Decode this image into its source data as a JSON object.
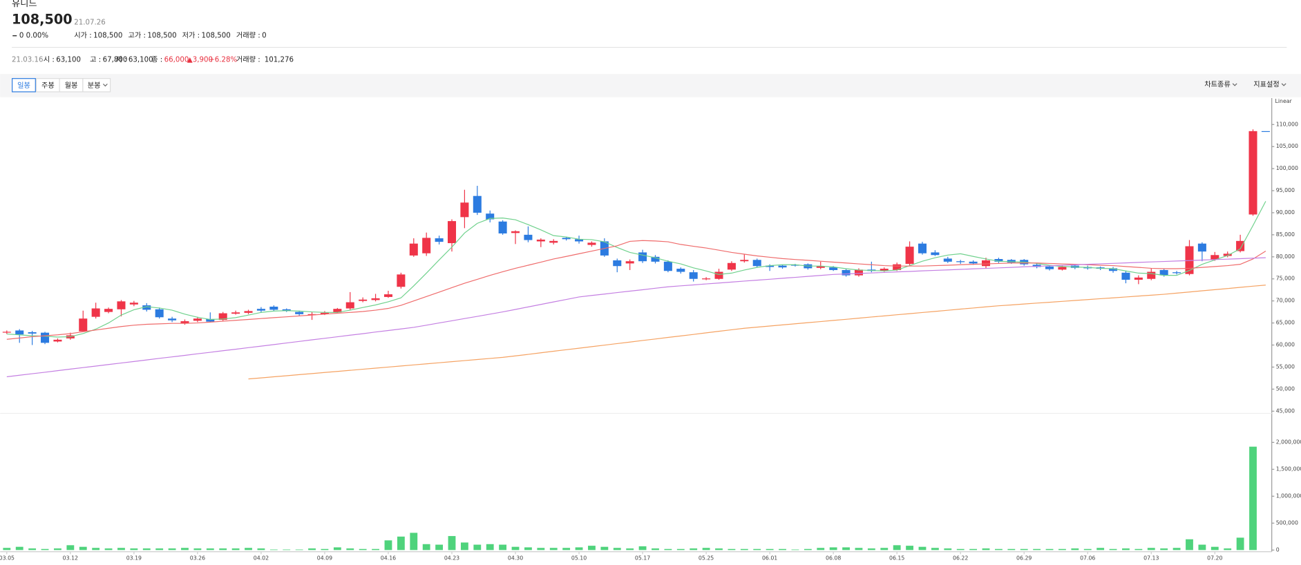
{
  "header": {
    "title": "유니드",
    "price": "108,500",
    "date": "21.07.26",
    "change": "0 0.00%",
    "stats": [
      {
        "label": "시가 :",
        "value": "108,500"
      },
      {
        "label": "고가 :",
        "value": "108,500"
      },
      {
        "label": "저가 :",
        "value": "108,500"
      },
      {
        "label": "거래량 :",
        "value": "0"
      }
    ]
  },
  "hover": {
    "date": "21.03.16",
    "stats": [
      {
        "label": "시 :",
        "value": "63,100"
      },
      {
        "label": "고 :",
        "value": "67,800"
      },
      {
        "label": "저 :",
        "value": "63,100"
      },
      {
        "label": "종 :",
        "value": "66,000"
      }
    ],
    "change": "▲3,900",
    "rate": "+6.28%",
    "volume": {
      "label": "거래량 :",
      "value": "101,276"
    }
  },
  "toolbar": {
    "intervals": [
      "일봉",
      "주봉",
      "월봉",
      "분봉"
    ],
    "right": [
      "차트종류",
      "지표설정"
    ]
  },
  "chart_data": {
    "type": "candlestick",
    "scale_label": "Linear",
    "categories": [
      "03.05",
      null,
      null,
      null,
      null,
      "03.12",
      null,
      null,
      null,
      null,
      "03.19",
      null,
      null,
      null,
      null,
      "03.26",
      null,
      null,
      null,
      null,
      "04.02",
      null,
      null,
      null,
      null,
      "04.09",
      null,
      null,
      null,
      null,
      "04.16",
      null,
      null,
      null,
      null,
      "04.23",
      null,
      null,
      null,
      null,
      "04.30",
      null,
      null,
      null,
      null,
      "05.10",
      null,
      null,
      null,
      null,
      "05.17",
      null,
      null,
      null,
      null,
      "05.25",
      null,
      null,
      null,
      null,
      "06.01",
      null,
      null,
      null,
      null,
      "06.08",
      null,
      null,
      null,
      null,
      "06.15",
      null,
      null,
      null,
      null,
      "06.22",
      null,
      null,
      null,
      null,
      "06.29",
      null,
      null,
      null,
      null,
      "07.06",
      null,
      null,
      null,
      null,
      "07.13",
      null,
      null,
      null,
      null,
      "07.20",
      null,
      null,
      null,
      null
    ],
    "open": [
      62900,
      63300,
      62900,
      62800,
      60800,
      61500,
      63100,
      66400,
      67500,
      68100,
      69200,
      69000,
      68100,
      66000,
      64900,
      65500,
      65900,
      65700,
      67100,
      67300,
      68200,
      68700,
      68100,
      67500,
      66800,
      67000,
      67400,
      68300,
      70000,
      70200,
      70900,
      73200,
      80300,
      80800,
      84200,
      83100,
      89000,
      93800,
      89800,
      88000,
      85400,
      85000,
      83500,
      83200,
      84300,
      84000,
      82700,
      83500,
      79200,
      78500,
      81000,
      80000,
      78900,
      77300,
      76500,
      74900,
      75000,
      77100,
      79000,
      79300,
      78000,
      78000,
      78200,
      78300,
      77500,
      77600,
      77000,
      75800,
      77100,
      76900,
      77000,
      78400,
      83000,
      81000,
      79600,
      79000,
      78900,
      77900,
      79500,
      79300,
      79300,
      78200,
      77800,
      77100,
      78000,
      77700,
      77600,
      77400,
      76400,
      74800,
      75000,
      77000,
      76500,
      76100,
      83000,
      79400,
      80200,
      81300,
      89600,
      108500
    ],
    "high": [
      63300,
      63600,
      63200,
      63000,
      61500,
      62800,
      67800,
      69600,
      68500,
      70200,
      70000,
      69500,
      68500,
      66400,
      65800,
      66400,
      67400,
      67500,
      67800,
      68000,
      68600,
      69000,
      68300,
      67800,
      67500,
      67700,
      68400,
      72000,
      70800,
      71600,
      72300,
      76400,
      84200,
      85500,
      84800,
      88500,
      95200,
      96100,
      90500,
      88300,
      86000,
      86900,
      84200,
      84000,
      84500,
      84800,
      83500,
      84200,
      79600,
      79400,
      81600,
      80400,
      79200,
      77600,
      77000,
      75400,
      77300,
      79000,
      80600,
      79600,
      78300,
      78200,
      78400,
      78500,
      78900,
      77900,
      77300,
      77400,
      78900,
      77600,
      78700,
      83500,
      83400,
      81500,
      80000,
      79300,
      79200,
      79800,
      79800,
      79500,
      79500,
      78500,
      78000,
      78000,
      78200,
      78000,
      77800,
      77700,
      76800,
      75800,
      77400,
      77300,
      76800,
      83800,
      83300,
      81100,
      81200,
      85000,
      108900,
      108500
    ],
    "low": [
      62500,
      60500,
      60000,
      60200,
      60600,
      61200,
      63100,
      66000,
      67200,
      66500,
      68800,
      67600,
      66000,
      65200,
      64600,
      65200,
      65100,
      65500,
      66900,
      67000,
      67300,
      67600,
      67500,
      66600,
      65700,
      66800,
      67200,
      68000,
      69700,
      69900,
      70700,
      72800,
      80000,
      80200,
      82800,
      81200,
      86500,
      89500,
      87800,
      85000,
      82900,
      83300,
      82200,
      82800,
      83700,
      83000,
      82300,
      80000,
      76500,
      77000,
      78600,
      78500,
      76500,
      76200,
      74400,
      74700,
      74800,
      76800,
      78700,
      77600,
      76800,
      77300,
      77800,
      77100,
      77200,
      76800,
      75500,
      75500,
      76500,
      76600,
      76800,
      78000,
      80500,
      80200,
      78600,
      78400,
      78200,
      77300,
      78600,
      78400,
      78000,
      77400,
      76900,
      76900,
      77200,
      77100,
      77000,
      76400,
      74000,
      73800,
      74700,
      75500,
      76000,
      75800,
      79000,
      79100,
      79900,
      81000,
      89300,
      108500
    ],
    "close": [
      63000,
      62400,
      62600,
      60500,
      61200,
      62200,
      66000,
      68300,
      68200,
      69900,
      69600,
      68000,
      66300,
      65600,
      65400,
      66000,
      65300,
      67200,
      67400,
      67700,
      67800,
      68000,
      67800,
      67000,
      67000,
      67300,
      68200,
      69700,
      70300,
      70600,
      71500,
      76000,
      83000,
      84300,
      83400,
      88100,
      92300,
      90000,
      88500,
      85300,
      85800,
      83800,
      83900,
      83600,
      84000,
      83500,
      83200,
      80300,
      77900,
      79000,
      79000,
      78900,
      76800,
      76600,
      75000,
      75100,
      76600,
      78600,
      79300,
      77900,
      77700,
      77600,
      78000,
      77400,
      77900,
      77000,
      75800,
      77100,
      76800,
      77300,
      78300,
      82300,
      80800,
      80400,
      78900,
      78800,
      78500,
      79200,
      78900,
      78700,
      78300,
      77700,
      77200,
      77700,
      77500,
      77400,
      77300,
      76800,
      74800,
      75300,
      76600,
      75800,
      76300,
      82400,
      81200,
      80400,
      80700,
      83600,
      108500,
      108500
    ],
    "volume": [
      40000,
      60000,
      30000,
      20000,
      30000,
      90000,
      60000,
      40000,
      30000,
      40000,
      30000,
      30000,
      30000,
      30000,
      40000,
      30000,
      30000,
      30000,
      30000,
      40000,
      30000,
      10000,
      10000,
      10000,
      30000,
      20000,
      50000,
      30000,
      20000,
      20000,
      180000,
      250000,
      320000,
      110000,
      100000,
      260000,
      140000,
      100000,
      110000,
      100000,
      60000,
      50000,
      40000,
      40000,
      40000,
      50000,
      80000,
      60000,
      40000,
      30000,
      70000,
      30000,
      20000,
      20000,
      30000,
      40000,
      30000,
      20000,
      20000,
      20000,
      20000,
      20000,
      10000,
      20000,
      40000,
      50000,
      50000,
      40000,
      30000,
      40000,
      90000,
      80000,
      60000,
      40000,
      30000,
      20000,
      20000,
      30000,
      20000,
      20000,
      20000,
      20000,
      20000,
      20000,
      30000,
      20000,
      40000,
      20000,
      30000,
      20000,
      40000,
      30000,
      40000,
      200000,
      100000,
      60000,
      30000,
      230000,
      1920000,
      0
    ],
    "up_color": "#ef3448",
    "down_color": "#2c7be0",
    "volume_color": "#4fd37c",
    "moving_averages": [
      {
        "color": "#6fd18c",
        "values": [
          62500,
          62300,
          62100,
          62000,
          61800,
          61900,
          62600,
          63600,
          65000,
          66800,
          68000,
          68700,
          68400,
          67900,
          67000,
          66300,
          65800,
          65900,
          66200,
          66800,
          67400,
          67700,
          67800,
          67700,
          67500,
          67400,
          67400,
          67900,
          68500,
          69100,
          69800,
          70700,
          73400,
          76300,
          79300,
          82200,
          85400,
          87600,
          88700,
          88800,
          88400,
          87300,
          86100,
          84800,
          84500,
          84000,
          83900,
          83400,
          82100,
          81000,
          80400,
          79800,
          79000,
          78400,
          77500,
          76800,
          76000,
          76300,
          77000,
          77600,
          78000,
          78200,
          78200,
          77900,
          77900,
          77700,
          77300,
          77000,
          76900,
          76800,
          77000,
          78000,
          79000,
          79800,
          80400,
          80700,
          80100,
          79500,
          79000,
          78900,
          78800,
          78500,
          78100,
          77800,
          77700,
          77600,
          77400,
          77300,
          76800,
          76300,
          76200,
          75800,
          75800,
          76900,
          78300,
          79300,
          80300,
          81800,
          87100,
          92600
        ]
      },
      {
        "color": "#ef6b6b",
        "values": [
          61300,
          61600,
          61900,
          62100,
          62300,
          62600,
          63000,
          63400,
          63800,
          64200,
          64500,
          64700,
          64800,
          64900,
          64900,
          65000,
          65200,
          65400,
          65600,
          65800,
          66000,
          66200,
          66400,
          66600,
          66800,
          67000,
          67200,
          67400,
          67600,
          67900,
          68300,
          69000,
          70000,
          71000,
          72000,
          73000,
          74000,
          74900,
          75800,
          76600,
          77400,
          78100,
          78800,
          79500,
          80100,
          80700,
          81300,
          81900,
          82500,
          83500,
          83700,
          83600,
          83400,
          82800,
          82400,
          82000,
          81500,
          81000,
          80600,
          80200,
          79900,
          79600,
          79400,
          79200,
          79000,
          78800,
          78600,
          78400,
          78200,
          78000,
          77900,
          77900,
          77900,
          78000,
          78100,
          78200,
          78300,
          78400,
          78500,
          78600,
          78600,
          78600,
          78500,
          78400,
          78300,
          78200,
          78100,
          78000,
          77800,
          77600,
          77400,
          77300,
          77300,
          77400,
          77600,
          77800,
          78000,
          78300,
          79500,
          81300
        ]
      },
      {
        "color": "#c47fe2",
        "values": [
          52800,
          53150,
          53500,
          53840,
          54190,
          54540,
          54880,
          55230,
          55580,
          55930,
          56270,
          56620,
          56970,
          57320,
          57660,
          58010,
          58360,
          58710,
          59050,
          59400,
          59750,
          60110,
          60460,
          60820,
          61170,
          61520,
          61880,
          62230,
          62580,
          62940,
          63290,
          63650,
          64000,
          64500,
          65000,
          65500,
          66000,
          66500,
          67000,
          67500,
          68070,
          68630,
          69200,
          69770,
          70330,
          70900,
          71230,
          71560,
          71890,
          72210,
          72540,
          72870,
          73200,
          73420,
          73630,
          73850,
          74060,
          74280,
          74490,
          74710,
          74920,
          75140,
          75350,
          75570,
          75780,
          76000,
          76120,
          76230,
          76350,
          76460,
          76580,
          76690,
          76810,
          76920,
          77040,
          77150,
          77270,
          77380,
          77500,
          77610,
          77730,
          77840,
          77960,
          78070,
          78190,
          78300,
          78410,
          78510,
          78620,
          78730,
          78840,
          78940,
          79050,
          79160,
          79260,
          79370,
          79480,
          79590,
          79690,
          79800
        ]
      },
      {
        "color": "#f5a262",
        "values": [
          null,
          null,
          null,
          null,
          null,
          null,
          null,
          null,
          null,
          null,
          null,
          null,
          null,
          null,
          null,
          null,
          null,
          null,
          null,
          52300,
          52550,
          52790,
          53040,
          53280,
          53530,
          53770,
          54020,
          54260,
          54510,
          54750,
          55000,
          55240,
          55490,
          55730,
          55980,
          56220,
          56470,
          56710,
          56960,
          57200,
          57550,
          57890,
          58240,
          58590,
          58940,
          59280,
          59630,
          59980,
          60330,
          60670,
          61020,
          61370,
          61720,
          62060,
          62410,
          62760,
          63110,
          63450,
          63800,
          64060,
          64310,
          64570,
          64820,
          65080,
          65330,
          65590,
          65840,
          66100,
          66350,
          66610,
          66860,
          67120,
          67370,
          67630,
          67880,
          68140,
          68390,
          68650,
          68900,
          69100,
          69300,
          69500,
          69700,
          69900,
          70100,
          70300,
          70500,
          70700,
          70900,
          71100,
          71300,
          71500,
          71760,
          72030,
          72290,
          72550,
          72810,
          73080,
          73340,
          73600
        ]
      }
    ],
    "ylim": [
      44600,
      116000
    ],
    "yticks": [
      {
        "value": 45000,
        "label": "45,000"
      },
      {
        "value": 50000,
        "label": "50,000"
      },
      {
        "value": 55000,
        "label": "55,000"
      },
      {
        "value": 60000,
        "label": "60,000"
      },
      {
        "value": 65000,
        "label": "65,000"
      },
      {
        "value": 70000,
        "label": "70,000"
      },
      {
        "value": 75000,
        "label": "75,000"
      },
      {
        "value": 80000,
        "label": "80,000"
      },
      {
        "value": 85000,
        "label": "85,000"
      },
      {
        "value": 90000,
        "label": "90,000"
      },
      {
        "value": 95000,
        "label": "95,000"
      },
      {
        "value": 100000,
        "label": "100,000"
      },
      {
        "value": 105000,
        "label": "105,000"
      },
      {
        "value": 110000,
        "label": "110,000"
      }
    ],
    "y2lim": [
      0,
      2500000
    ],
    "y2ticks": [
      0,
      {
        "value": 500000,
        "label": "500,000"
      },
      {
        "value": 1000000,
        "label": "1,000,000"
      },
      {
        "value": 1500000,
        "label": "1,500,000"
      },
      {
        "value": 2000000,
        "label": "2,000,000"
      }
    ]
  }
}
